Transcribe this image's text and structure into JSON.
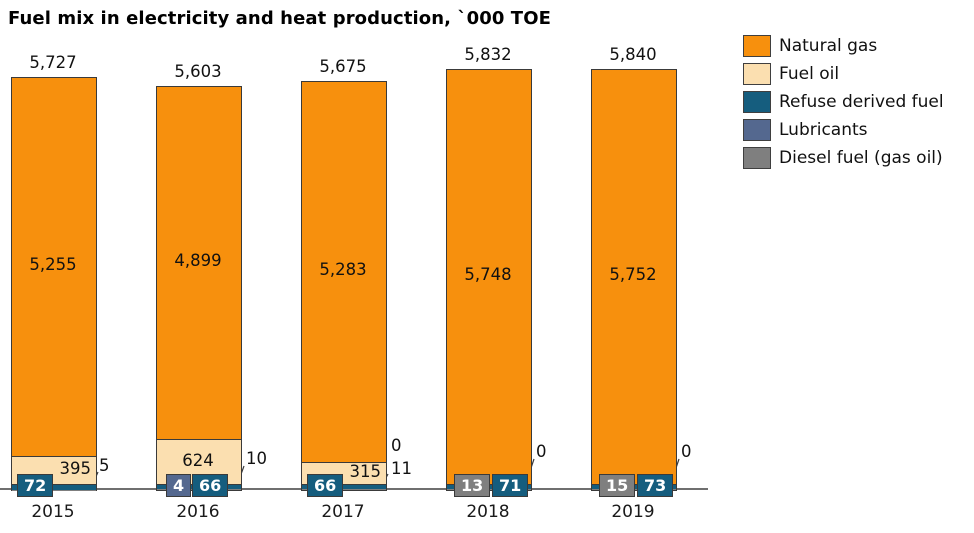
{
  "title": "Fuel mix in electricity and heat production, `000 TOE",
  "legend": {
    "items": [
      {
        "label": "Natural gas",
        "color": "#F7900D"
      },
      {
        "label": "Fuel oil",
        "color": "#FBDFB0"
      },
      {
        "label": "Refuse derived fuel",
        "color": "#155D7E"
      },
      {
        "label": "Lubricants",
        "color": "#54688F"
      },
      {
        "label": "Diesel fuel (gas oil)",
        "color": "#7F7F7F"
      }
    ]
  },
  "chart_data": {
    "type": "bar",
    "stacked": true,
    "title": "Fuel mix in electricity and heat production, `000 TOE",
    "ylabel": "`000 TOE",
    "categories": [
      "2015",
      "2016",
      "2017",
      "2018",
      "2019"
    ],
    "series": [
      {
        "name": "Natural gas",
        "color": "#F7900D",
        "values": [
          5255,
          4899,
          5283,
          5748,
          5752
        ]
      },
      {
        "name": "Fuel oil",
        "color": "#FBDFB0",
        "values": [
          395,
          624,
          315,
          0,
          0
        ]
      },
      {
        "name": "Refuse derived fuel",
        "color": "#155D7E",
        "values": [
          72,
          66,
          66,
          71,
          73
        ]
      },
      {
        "name": "Lubricants",
        "color": "#54688F",
        "values": [
          0,
          4,
          0,
          0,
          0
        ]
      },
      {
        "name": "Diesel fuel (gas oil)",
        "color": "#7F7F7F",
        "values": [
          5,
          10,
          11,
          13,
          15
        ]
      }
    ],
    "totals_labels": [
      "5,727",
      "5,603",
      "5,675",
      "5,832",
      "5,840"
    ],
    "natural_gas_labels": [
      "5,255",
      "4,899",
      "5,283",
      "5,748",
      "5,752"
    ],
    "fuel_oil_labels": [
      {
        "text": "395",
        "align": "right"
      },
      {
        "text": "624",
        "align": "center"
      },
      {
        "text": "315",
        "align": "right"
      },
      null,
      null
    ],
    "boxed_labels": [
      [
        {
          "text": "72",
          "series": "Refuse derived fuel"
        }
      ],
      [
        {
          "text": "4",
          "series": "Lubricants"
        },
        {
          "text": "66",
          "series": "Refuse derived fuel"
        }
      ],
      [
        {
          "text": "66",
          "series": "Refuse derived fuel"
        }
      ],
      [
        {
          "text": "13",
          "series": "Diesel fuel (gas oil)"
        },
        {
          "text": "71",
          "series": "Refuse derived fuel"
        }
      ],
      [
        {
          "text": "15",
          "series": "Diesel fuel (gas oil)"
        },
        {
          "text": "73",
          "series": "Refuse derived fuel"
        }
      ]
    ],
    "leader_labels": [
      [
        "5"
      ],
      [
        "10"
      ],
      [
        "0",
        "11"
      ],
      [
        "0"
      ],
      [
        "0"
      ]
    ],
    "ylim": [
      0,
      6000
    ],
    "grid": false,
    "legend_position": "top-right"
  }
}
